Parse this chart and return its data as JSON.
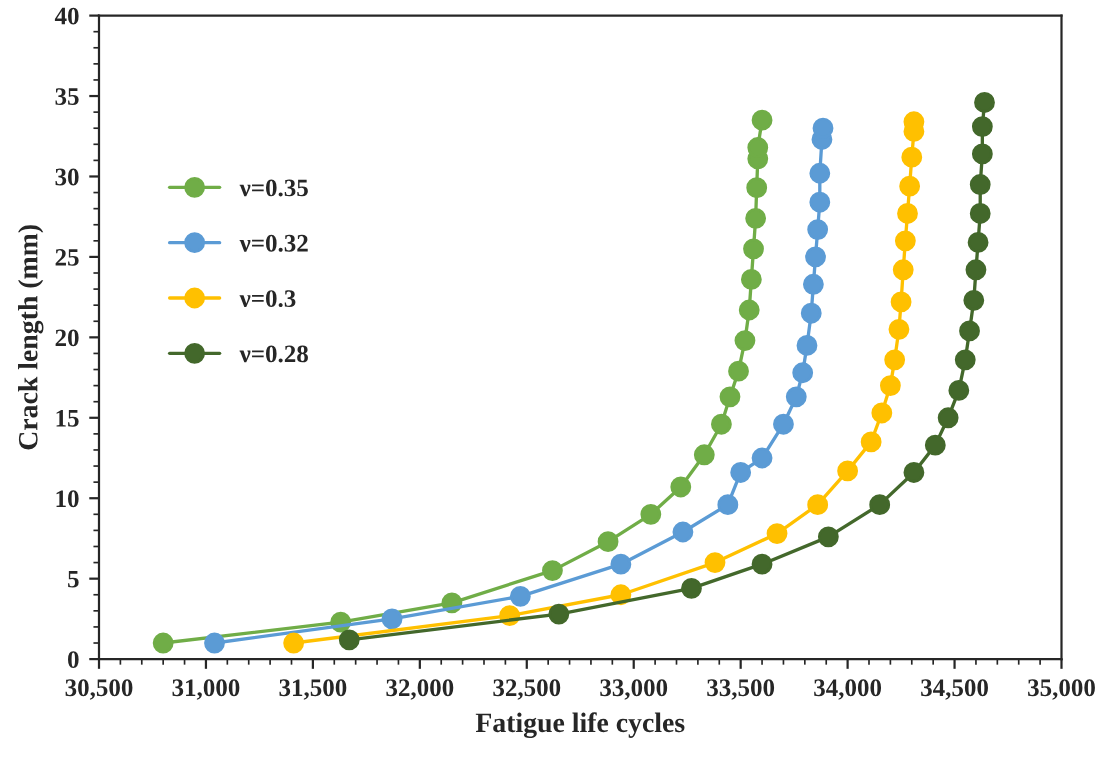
{
  "chart_data": {
    "type": "line",
    "xlabel": "Fatigue life cycles",
    "ylabel": "Crack length (mm)",
    "xlim": [
      30500,
      35000
    ],
    "xticks": [
      {
        "value": 30500,
        "label": "30,500"
      },
      {
        "value": 31000,
        "label": "31,000"
      },
      {
        "value": 31500,
        "label": "31,500"
      },
      {
        "value": 32000,
        "label": "32,000"
      },
      {
        "value": 32500,
        "label": "32,500"
      },
      {
        "value": 33000,
        "label": "33,000"
      },
      {
        "value": 33500,
        "label": "33,500"
      },
      {
        "value": 34000,
        "label": "34,000"
      },
      {
        "value": 34500,
        "label": "34,500"
      },
      {
        "value": 35000,
        "label": "35,000"
      }
    ],
    "ylim": [
      0,
      40
    ],
    "yticks": [
      0,
      5,
      10,
      15,
      20,
      25,
      30,
      35,
      40
    ],
    "grid": false,
    "legend": "left",
    "marker": "circle",
    "line_style": "solid",
    "series": [
      {
        "name": "ν=0.35",
        "color": "#70ad47",
        "x": [
          30800,
          31630,
          32150,
          32620,
          32880,
          33080,
          33220,
          33330,
          33410,
          33450,
          33490,
          33520,
          33540,
          33550,
          33560,
          33570,
          33575,
          33580,
          33580,
          33600
        ],
        "values": [
          1,
          2.3,
          3.5,
          5.5,
          7.3,
          9,
          10.7,
          12.7,
          14.6,
          16.3,
          17.9,
          19.8,
          21.7,
          23.6,
          25.5,
          27.4,
          29.3,
          31.1,
          31.8,
          33.5
        ]
      },
      {
        "name": "ν=0.32",
        "color": "#5b9bd5",
        "x": [
          31040,
          31870,
          32470,
          32940,
          33230,
          33440,
          33500,
          33600,
          33700,
          33760,
          33790,
          33810,
          33830,
          33840,
          33850,
          33860,
          33870,
          33870,
          33880,
          33885
        ],
        "values": [
          1,
          2.5,
          3.9,
          5.9,
          7.9,
          9.6,
          11.6,
          12.5,
          14.6,
          16.3,
          17.8,
          19.5,
          21.5,
          23.3,
          25,
          26.7,
          28.4,
          30.2,
          32.3,
          33
        ]
      },
      {
        "name": "ν=0.3",
        "color": "#ffc000",
        "x": [
          31410,
          32420,
          32940,
          33380,
          33670,
          33860,
          34000,
          34110,
          34160,
          34200,
          34220,
          34240,
          34250,
          34260,
          34270,
          34280,
          34290,
          34300,
          34310,
          34310
        ],
        "values": [
          1,
          2.7,
          4,
          6,
          7.8,
          9.6,
          11.7,
          13.5,
          15.3,
          17,
          18.6,
          20.5,
          22.2,
          24.2,
          26,
          27.7,
          29.4,
          31.2,
          32.8,
          33.4
        ]
      },
      {
        "name": "ν=0.28",
        "color": "#43682b",
        "x": [
          31670,
          32650,
          33270,
          33600,
          33910,
          34150,
          34310,
          34410,
          34470,
          34520,
          34550,
          34570,
          34590,
          34600,
          34610,
          34620,
          34620,
          34630,
          34630,
          34640
        ],
        "values": [
          1.2,
          2.8,
          4.4,
          5.9,
          7.6,
          9.6,
          11.6,
          13.3,
          15,
          16.7,
          18.6,
          20.4,
          22.3,
          24.2,
          25.9,
          27.7,
          29.5,
          31.4,
          33.1,
          34.6
        ]
      }
    ]
  }
}
